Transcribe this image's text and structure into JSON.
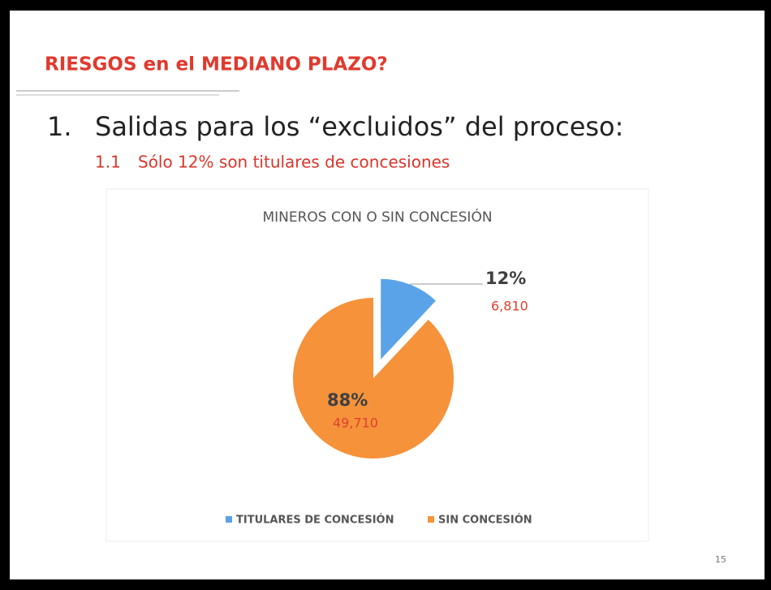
{
  "slide": {
    "title": "RIESGOS en el MEDIANO PLAZO?",
    "heading_number": "1.",
    "heading": "Salidas para los “excluidos” del proceso:",
    "sub_number": "1.1",
    "subheading": "Sólo 12% son titulares de concesiones",
    "page_number": "15"
  },
  "chart_data": {
    "type": "pie",
    "title": "MINEROS CON O SIN CONCESIÓN",
    "categories": [
      "TITULARES DE CONCESIÓN",
      "SIN CONCESIÓN"
    ],
    "values": [
      12,
      88
    ],
    "value_labels": [
      "12%",
      "88%"
    ],
    "counts": [
      6810,
      49710
    ],
    "count_labels": [
      "6,810",
      "49,710"
    ],
    "colors": [
      "#5ba3e8",
      "#f5923a"
    ],
    "legend": "bottom"
  }
}
